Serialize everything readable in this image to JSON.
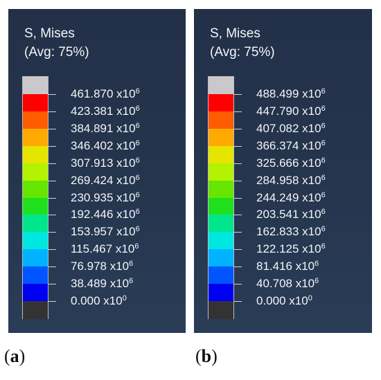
{
  "colors": {
    "bands_top_to_bottom": [
      "#c9c9cb",
      "#ff0000",
      "#ff5c00",
      "#ffaa00",
      "#e5e500",
      "#b3f200",
      "#66e600",
      "#1fe01f",
      "#00e68c",
      "#00e6e0",
      "#00b2ff",
      "#0055ff",
      "#0000f0",
      "#333333"
    ]
  },
  "panels": [
    {
      "title_line1": "S, Mises",
      "title_line2": "(Avg: 75%)",
      "caption_letter": "a",
      "labels": [
        {
          "value": "461.870 x10",
          "exp": "6"
        },
        {
          "value": "423.381 x10",
          "exp": "6"
        },
        {
          "value": "384.891 x10",
          "exp": "6"
        },
        {
          "value": "346.402 x10",
          "exp": "6"
        },
        {
          "value": "307.913 x10",
          "exp": "6"
        },
        {
          "value": "269.424 x10",
          "exp": "6"
        },
        {
          "value": "230.935 x10",
          "exp": "6"
        },
        {
          "value": "192.446 x10",
          "exp": "6"
        },
        {
          "value": "153.957 x10",
          "exp": "6"
        },
        {
          "value": "115.467 x10",
          "exp": "6"
        },
        {
          "value": "76.978 x10",
          "exp": "6"
        },
        {
          "value": "38.489 x10",
          "exp": "6"
        },
        {
          "value": "0.000 x10",
          "exp": "0"
        }
      ]
    },
    {
      "title_line1": "S, Mises",
      "title_line2": "(Avg: 75%)",
      "caption_letter": "b",
      "labels": [
        {
          "value": "488.499 x10",
          "exp": "6"
        },
        {
          "value": "447.790 x10",
          "exp": "6"
        },
        {
          "value": "407.082 x10",
          "exp": "6"
        },
        {
          "value": "366.374 x10",
          "exp": "6"
        },
        {
          "value": "325.666 x10",
          "exp": "6"
        },
        {
          "value": "284.958 x10",
          "exp": "6"
        },
        {
          "value": "244.249 x10",
          "exp": "6"
        },
        {
          "value": "203.541 x10",
          "exp": "6"
        },
        {
          "value": "162.833 x10",
          "exp": "6"
        },
        {
          "value": "122.125 x10",
          "exp": "6"
        },
        {
          "value": "81.416 x10",
          "exp": "6"
        },
        {
          "value": "40.708 x10",
          "exp": "6"
        },
        {
          "value": "0.000 x10",
          "exp": "0"
        }
      ]
    }
  ]
}
